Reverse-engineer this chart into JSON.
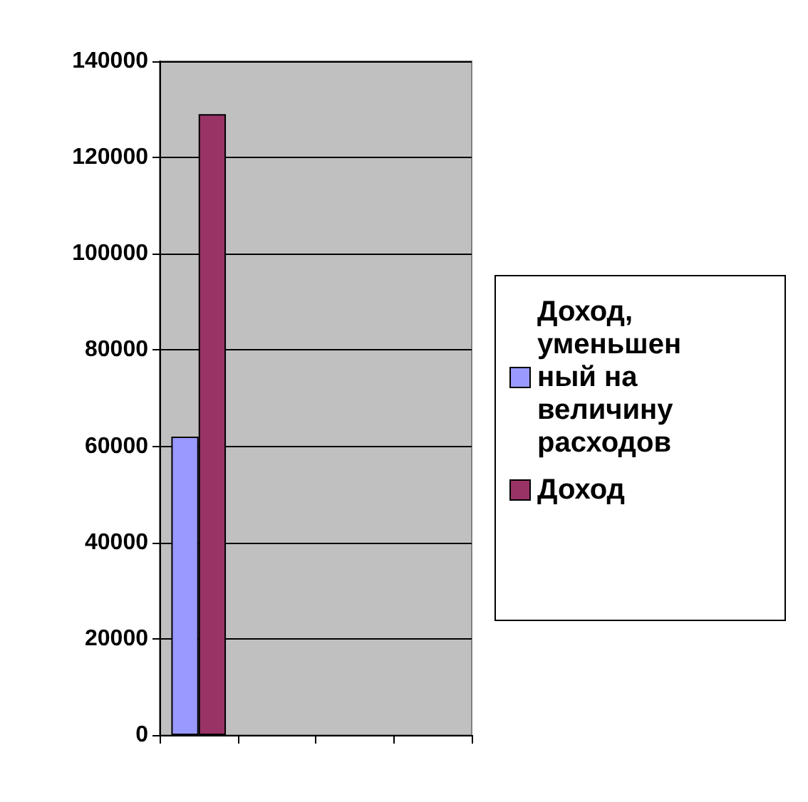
{
  "chart_data": {
    "type": "bar",
    "categories": [
      null,
      null,
      null,
      null
    ],
    "series": [
      {
        "name": "Доход, уменьшенный на величину расходов",
        "color": "#9999ff",
        "values": [
          62000,
          null,
          null,
          null
        ]
      },
      {
        "name": "Доход",
        "color": "#993366",
        "values": [
          129000,
          null,
          null,
          null
        ]
      }
    ],
    "ylim": [
      0,
      140000
    ],
    "yticks": [
      0,
      20000,
      40000,
      60000,
      80000,
      100000,
      120000,
      140000
    ],
    "grid": "y",
    "legend": "right"
  }
}
